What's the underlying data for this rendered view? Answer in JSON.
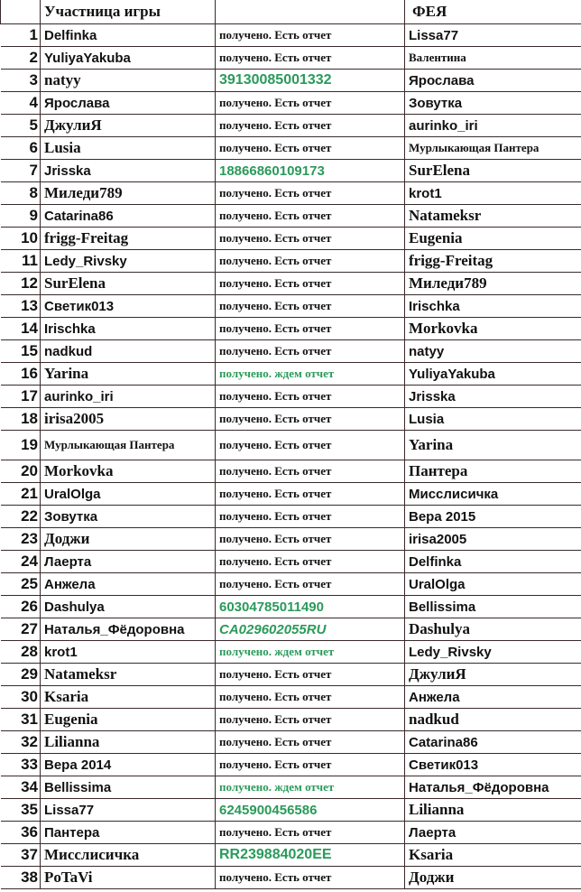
{
  "header": {
    "num": "",
    "participant": "Участница игры",
    "status": "",
    "fairy": "ФЕЯ"
  },
  "colors": {
    "green": "#2a9a5a",
    "text": "#111111"
  },
  "rows": [
    {
      "n": "1",
      "name": "Delfinka",
      "status": "получено. Есть отчет",
      "type": "report",
      "fairy": "Lissa77"
    },
    {
      "n": "2",
      "name": "YuliyaYakuba",
      "status": "получено. Есть отчет",
      "type": "report",
      "fairy": "Валентина"
    },
    {
      "n": "3",
      "name": "natyy",
      "status": "39130085001332",
      "type": "track",
      "fairy": "Ярослава"
    },
    {
      "n": "4",
      "name": "Ярослава",
      "status": "получено. Есть отчет",
      "type": "report",
      "fairy": "Зовутка"
    },
    {
      "n": "5",
      "name": "ДжулиЯ",
      "status": "получено. Есть отчет",
      "type": "report",
      "fairy": "aurinko_iri"
    },
    {
      "n": "6",
      "name": "Lusia",
      "status": "получено. Есть отчет",
      "type": "report",
      "fairy": "Мурлыкающая Пантера"
    },
    {
      "n": "7",
      "name": "Jrisska",
      "status": "18866860109173",
      "type": "track",
      "fairy": "SurElena"
    },
    {
      "n": "8",
      "name": "Миледи789",
      "status": "получено. Есть отчет",
      "type": "report",
      "fairy": "krot1"
    },
    {
      "n": "9",
      "name": "Catarina86",
      "status": "получено. Есть отчет",
      "type": "report",
      "fairy": "Natameksr"
    },
    {
      "n": "10",
      "name": "frigg-Freitag",
      "status": "получено. Есть отчет",
      "type": "report",
      "fairy": "Eugenia"
    },
    {
      "n": "11",
      "name": "Ledy_Rivsky",
      "status": "получено. Есть отчет",
      "type": "report",
      "fairy": "frigg-Freitag"
    },
    {
      "n": "12",
      "name": "SurElena",
      "status": "получено. Есть отчет",
      "type": "report",
      "fairy": "Миледи789"
    },
    {
      "n": "13",
      "name": "Светик013",
      "status": "получено. Есть отчет",
      "type": "report",
      "fairy": "Irischka"
    },
    {
      "n": "14",
      "name": "Irischka",
      "status": "получено. Есть отчет",
      "type": "report",
      "fairy": "Morkovka"
    },
    {
      "n": "15",
      "name": "nadkud",
      "status": "получено. Есть отчет",
      "type": "report",
      "fairy": "natyy"
    },
    {
      "n": "16",
      "name": "Yarina",
      "status": "получено. ждем отчет",
      "type": "waiting",
      "fairy": "YuliyaYakuba"
    },
    {
      "n": "17",
      "name": "aurinko_iri",
      "status": "получено. Есть отчет",
      "type": "report",
      "fairy": "Jrisska"
    },
    {
      "n": "18",
      "name": "irisa2005",
      "status": "получено. Есть отчет",
      "type": "report",
      "fairy": "Lusia"
    },
    {
      "n": "19",
      "name": "Мурлыкающая Пантера",
      "status": "получено. Есть отчет",
      "type": "report",
      "fairy": "Yarina"
    },
    {
      "n": "20",
      "name": "Morkovka",
      "status": "получено. Есть отчет",
      "type": "report",
      "fairy": "Пантера"
    },
    {
      "n": "21",
      "name": "UralOlga",
      "status": "получено. Есть отчет",
      "type": "report",
      "fairy": "Мисслисичка"
    },
    {
      "n": "22",
      "name": "Зовутка",
      "status": "получено. Есть отчет",
      "type": "report",
      "fairy": "Вера 2015"
    },
    {
      "n": "23",
      "name": "Доджи",
      "status": "получено. Есть отчет",
      "type": "report",
      "fairy": "irisa2005"
    },
    {
      "n": "24",
      "name": "Лаерта",
      "status": "получено. Есть отчет",
      "type": "report",
      "fairy": "Delfinka"
    },
    {
      "n": "25",
      "name": "Анжела",
      "status": "получено. Есть отчет",
      "type": "report",
      "fairy": "UralOlga"
    },
    {
      "n": "26",
      "name": "Dashulya",
      "status": "60304785011490",
      "type": "track",
      "fairy": "Bellissima"
    },
    {
      "n": "27",
      "name": "Наталья_Фёдоровна",
      "status": "CA029602055RU",
      "type": "track",
      "fairy": "Dashulya"
    },
    {
      "n": "28",
      "name": "krot1",
      "status": "получено. ждем отчет",
      "type": "waiting",
      "fairy": "Ledy_Rivsky"
    },
    {
      "n": "29",
      "name": "Natameksr",
      "status": "получено. Есть отчет",
      "type": "report",
      "fairy": "ДжулиЯ"
    },
    {
      "n": "30",
      "name": "Ksaria",
      "status": "получено. Есть отчет",
      "type": "report",
      "fairy": "Анжела"
    },
    {
      "n": "31",
      "name": "Eugenia",
      "status": "получено. Есть отчет",
      "type": "report",
      "fairy": "nadkud"
    },
    {
      "n": "32",
      "name": "Lilianna",
      "status": "получено. Есть отчет",
      "type": "report",
      "fairy": "Catarina86"
    },
    {
      "n": "33",
      "name": "Вера 2014",
      "status": "получено. Есть отчет",
      "type": "report",
      "fairy": "Светик013"
    },
    {
      "n": "34",
      "name": "Bellissima",
      "status": "получено. ждем отчет",
      "type": "waiting",
      "fairy": "Наталья_Фёдоровна"
    },
    {
      "n": "35",
      "name": "Lissa77",
      "status": "6245900456586",
      "type": "track",
      "fairy": "Lilianna"
    },
    {
      "n": "36",
      "name": "Пантера",
      "status": "получено. Есть отчет",
      "type": "report",
      "fairy": "Лаерта"
    },
    {
      "n": "37",
      "name": "Мисслисичка",
      "status": "RR239884020EE",
      "type": "track",
      "fairy": "Ksaria"
    },
    {
      "n": "38",
      "name": "PoTaVi",
      "status": "получено. Есть отчет",
      "type": "report",
      "fairy": "Доджи"
    }
  ]
}
